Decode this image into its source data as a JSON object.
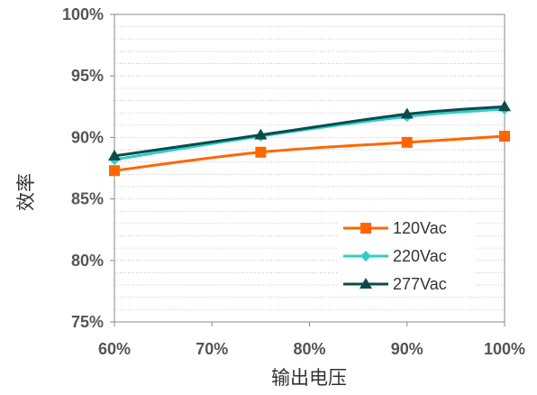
{
  "chart_data": {
    "type": "line",
    "title": "",
    "xlabel": "输出电压",
    "ylabel": "效率",
    "x": [
      60,
      75,
      90,
      100
    ],
    "xlim": [
      60,
      100
    ],
    "ylim": [
      75,
      100
    ],
    "x_ticks": [
      "60%",
      "70%",
      "80%",
      "90%",
      "100%"
    ],
    "y_ticks": [
      "75%",
      "80%",
      "85%",
      "90%",
      "95%",
      "100%"
    ],
    "grid": "horizontal dotted",
    "legend_position": "bottom-right",
    "series": [
      {
        "name": "120Vac",
        "color": "#FF6600",
        "marker": "square",
        "values": [
          87.3,
          88.8,
          89.6,
          90.1
        ]
      },
      {
        "name": "220Vac",
        "color": "#33CCCC",
        "marker": "diamond",
        "values": [
          88.2,
          90.1,
          91.7,
          92.3
        ]
      },
      {
        "name": "277Vac",
        "color": "#0B4B4B",
        "marker": "triangle",
        "values": [
          88.5,
          90.2,
          91.9,
          92.5
        ]
      }
    ]
  }
}
